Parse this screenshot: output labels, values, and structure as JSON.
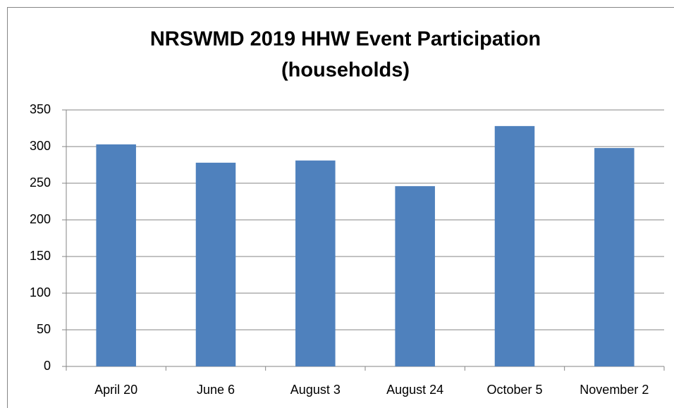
{
  "chart_data": {
    "type": "bar",
    "title": [
      "NRSWMD 2019 HHW Event Participation",
      "(households)"
    ],
    "categories": [
      "April 20",
      "June 6",
      "August 3",
      "August 24",
      "October 5",
      "November 2"
    ],
    "values": [
      303,
      278,
      281,
      246,
      328,
      298
    ],
    "color": "#4f81bd",
    "ylim": [
      0,
      350
    ],
    "yticks": [
      0,
      50,
      100,
      150,
      200,
      250,
      300,
      350
    ],
    "grid": true
  }
}
